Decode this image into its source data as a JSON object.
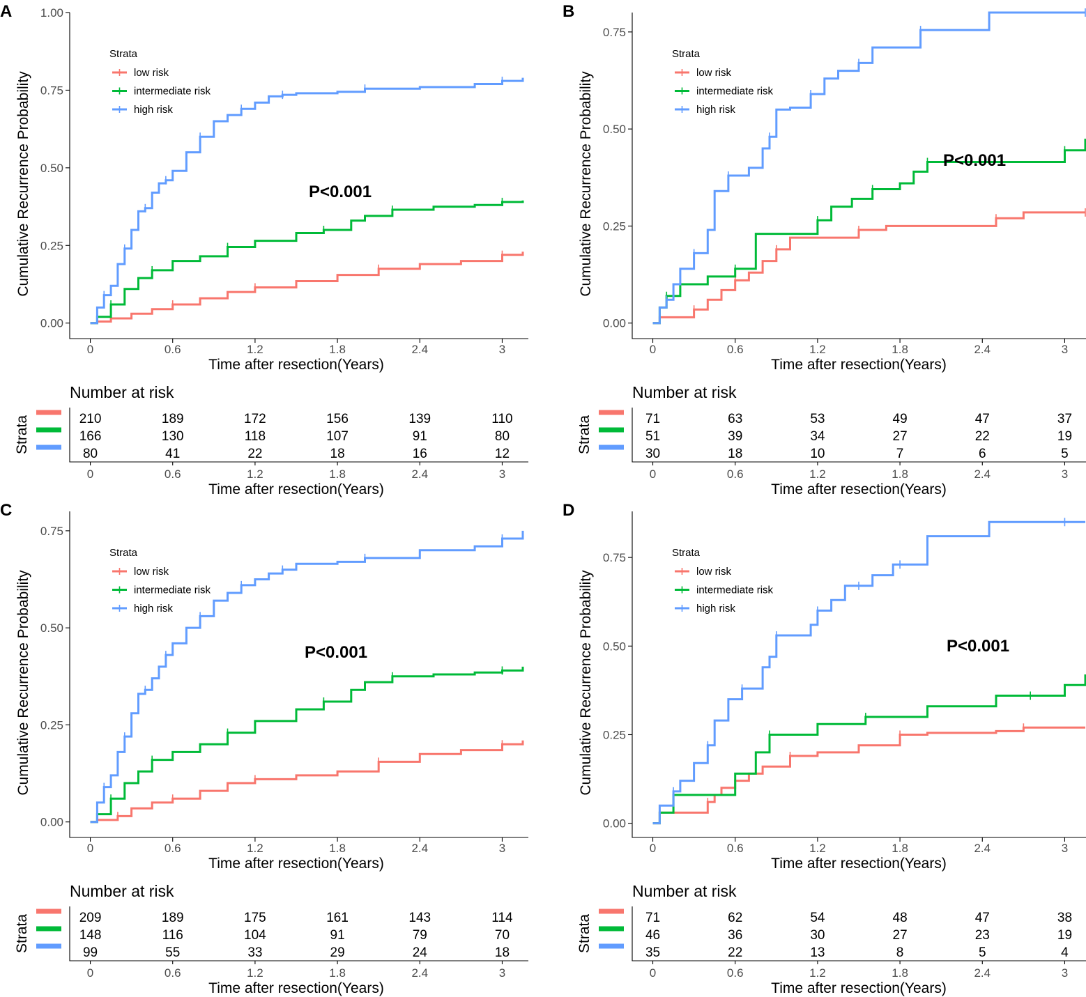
{
  "chart_data": [
    {
      "panel": "A",
      "type": "line",
      "ylabel": "Cumulative Recurrence Probability",
      "xlabel": "Time after resection(Years)",
      "xlim": [
        -0.15,
        3.15
      ],
      "ylim": [
        -0.05,
        1.0
      ],
      "xticks": [
        "0",
        "0.6",
        "1.2",
        "1.8",
        "2.4",
        "3"
      ],
      "xtick_values": [
        0,
        0.6,
        1.2,
        1.8,
        2.4,
        3
      ],
      "yticks": [
        "0.00",
        "0.25",
        "0.50",
        "0.75",
        "1.00"
      ],
      "ytick_values": [
        0,
        0.25,
        0.5,
        0.75,
        1.0
      ],
      "p_value": "P<0.001",
      "legend_title": "Strata",
      "series": [
        {
          "name": "low risk",
          "color": "#F8766D",
          "x": [
            0,
            0.05,
            0.15,
            0.3,
            0.45,
            0.6,
            0.8,
            1.0,
            1.2,
            1.5,
            1.8,
            2.1,
            2.4,
            2.7,
            3.0,
            3.15
          ],
          "y": [
            0,
            0.005,
            0.015,
            0.03,
            0.045,
            0.06,
            0.08,
            0.1,
            0.115,
            0.135,
            0.155,
            0.175,
            0.19,
            0.2,
            0.22,
            0.23
          ]
        },
        {
          "name": "intermediate risk",
          "color": "#00BA38",
          "x": [
            0,
            0.05,
            0.15,
            0.25,
            0.35,
            0.45,
            0.6,
            0.8,
            1.0,
            1.2,
            1.5,
            1.7,
            1.9,
            2.0,
            2.2,
            2.5,
            2.8,
            3.0,
            3.15
          ],
          "y": [
            0,
            0.02,
            0.06,
            0.11,
            0.145,
            0.17,
            0.2,
            0.215,
            0.245,
            0.265,
            0.29,
            0.3,
            0.33,
            0.345,
            0.365,
            0.375,
            0.38,
            0.39,
            0.395
          ]
        },
        {
          "name": "high risk",
          "color": "#619CFF",
          "x": [
            0,
            0.05,
            0.1,
            0.15,
            0.2,
            0.25,
            0.3,
            0.35,
            0.4,
            0.45,
            0.5,
            0.55,
            0.6,
            0.7,
            0.8,
            0.9,
            1.0,
            1.1,
            1.2,
            1.3,
            1.4,
            1.5,
            1.8,
            2.0,
            2.4,
            2.8,
            3.0,
            3.15
          ],
          "y": [
            0,
            0.05,
            0.09,
            0.12,
            0.19,
            0.24,
            0.3,
            0.36,
            0.37,
            0.42,
            0.45,
            0.46,
            0.49,
            0.55,
            0.6,
            0.65,
            0.67,
            0.69,
            0.71,
            0.73,
            0.735,
            0.74,
            0.745,
            0.755,
            0.76,
            0.77,
            0.78,
            0.79
          ]
        }
      ],
      "risk_table": {
        "title": "Number at risk",
        "ylabel": "Strata",
        "xlabel": "Time after resection(Years)",
        "rows": [
          [
            "210",
            "189",
            "172",
            "156",
            "139",
            "110"
          ],
          [
            "166",
            "130",
            "118",
            "107",
            "91",
            "80"
          ],
          [
            "80",
            "41",
            "22",
            "18",
            "16",
            "12"
          ]
        ]
      }
    },
    {
      "panel": "B",
      "type": "line",
      "ylabel": "Cumulative Recurrence Probability",
      "xlabel": "Time after resection(Years)",
      "xlim": [
        -0.15,
        3.15
      ],
      "ylim": [
        -0.04,
        0.8
      ],
      "xticks": [
        "0",
        "0.6",
        "1.2",
        "1.8",
        "2.4",
        "3"
      ],
      "xtick_values": [
        0,
        0.6,
        1.2,
        1.8,
        2.4,
        3
      ],
      "yticks": [
        "0.00",
        "0.25",
        "0.50",
        "0.75"
      ],
      "ytick_values": [
        0,
        0.25,
        0.5,
        0.75
      ],
      "p_value": "P<0.001",
      "legend_title": "Strata",
      "series": [
        {
          "name": "low risk",
          "color": "#F8766D",
          "x": [
            0,
            0.05,
            0.3,
            0.4,
            0.5,
            0.6,
            0.7,
            0.8,
            0.9,
            1.0,
            1.2,
            1.5,
            1.7,
            2.0,
            2.5,
            2.7,
            3.0,
            3.15
          ],
          "y": [
            0,
            0.015,
            0.035,
            0.06,
            0.085,
            0.11,
            0.13,
            0.16,
            0.19,
            0.22,
            0.22,
            0.24,
            0.25,
            0.25,
            0.27,
            0.285,
            0.285,
            0.285
          ]
        },
        {
          "name": "intermediate risk",
          "color": "#00BA38",
          "x": [
            0,
            0.05,
            0.1,
            0.2,
            0.4,
            0.6,
            0.75,
            1.0,
            1.2,
            1.3,
            1.45,
            1.6,
            1.8,
            1.9,
            2.0,
            2.5,
            2.8,
            3.0,
            3.15
          ],
          "y": [
            0,
            0.04,
            0.07,
            0.1,
            0.12,
            0.14,
            0.23,
            0.23,
            0.265,
            0.3,
            0.32,
            0.345,
            0.36,
            0.39,
            0.415,
            0.415,
            0.415,
            0.445,
            0.475
          ]
        },
        {
          "name": "high risk",
          "color": "#619CFF",
          "x": [
            0,
            0.05,
            0.1,
            0.15,
            0.2,
            0.3,
            0.4,
            0.45,
            0.55,
            0.7,
            0.8,
            0.85,
            0.9,
            1.0,
            1.15,
            1.25,
            1.35,
            1.5,
            1.6,
            1.8,
            1.95,
            2.45,
            3.0,
            3.15
          ],
          "y": [
            0,
            0.04,
            0.06,
            0.1,
            0.14,
            0.18,
            0.24,
            0.34,
            0.38,
            0.4,
            0.45,
            0.48,
            0.55,
            0.555,
            0.59,
            0.63,
            0.65,
            0.67,
            0.71,
            0.71,
            0.755,
            0.8,
            0.8,
            0.8
          ]
        }
      ],
      "risk_table": {
        "title": "Number at risk",
        "ylabel": "Strata",
        "xlabel": "Time after resection(Years)",
        "rows": [
          [
            "71",
            "63",
            "53",
            "49",
            "47",
            "37"
          ],
          [
            "51",
            "39",
            "34",
            "27",
            "22",
            "19"
          ],
          [
            "30",
            "18",
            "10",
            "7",
            "6",
            "5"
          ]
        ]
      }
    },
    {
      "panel": "C",
      "type": "line",
      "ylabel": "Cumulative Recurrence Probability",
      "xlabel": "Time after resection(Years)",
      "xlim": [
        -0.15,
        3.15
      ],
      "ylim": [
        -0.04,
        0.8
      ],
      "xticks": [
        "0",
        "0.6",
        "1.2",
        "1.8",
        "2.4",
        "3"
      ],
      "xtick_values": [
        0,
        0.6,
        1.2,
        1.8,
        2.4,
        3
      ],
      "yticks": [
        "0.00",
        "0.25",
        "0.50",
        "0.75"
      ],
      "ytick_values": [
        0,
        0.25,
        0.5,
        0.75
      ],
      "p_value": "P<0.001",
      "legend_title": "Strata",
      "series": [
        {
          "name": "low risk",
          "color": "#F8766D",
          "x": [
            0,
            0.05,
            0.2,
            0.3,
            0.45,
            0.6,
            0.8,
            1.0,
            1.2,
            1.5,
            1.8,
            2.1,
            2.4,
            2.7,
            3.0,
            3.15
          ],
          "y": [
            0,
            0.005,
            0.015,
            0.035,
            0.05,
            0.06,
            0.08,
            0.1,
            0.11,
            0.12,
            0.13,
            0.155,
            0.175,
            0.185,
            0.2,
            0.21
          ]
        },
        {
          "name": "intermediate risk",
          "color": "#00BA38",
          "x": [
            0,
            0.05,
            0.15,
            0.25,
            0.35,
            0.45,
            0.6,
            0.8,
            1.0,
            1.2,
            1.5,
            1.7,
            1.9,
            2.0,
            2.2,
            2.5,
            2.8,
            3.0,
            3.15
          ],
          "y": [
            0,
            0.02,
            0.06,
            0.1,
            0.13,
            0.16,
            0.18,
            0.2,
            0.23,
            0.26,
            0.29,
            0.31,
            0.34,
            0.36,
            0.375,
            0.38,
            0.385,
            0.39,
            0.4
          ]
        },
        {
          "name": "high risk",
          "color": "#619CFF",
          "x": [
            0,
            0.05,
            0.1,
            0.15,
            0.2,
            0.25,
            0.3,
            0.35,
            0.4,
            0.45,
            0.5,
            0.55,
            0.6,
            0.7,
            0.8,
            0.9,
            1.0,
            1.1,
            1.2,
            1.3,
            1.4,
            1.5,
            1.8,
            2.0,
            2.4,
            2.8,
            3.0,
            3.15
          ],
          "y": [
            0,
            0.05,
            0.09,
            0.12,
            0.18,
            0.22,
            0.28,
            0.33,
            0.34,
            0.37,
            0.4,
            0.43,
            0.46,
            0.5,
            0.53,
            0.57,
            0.59,
            0.61,
            0.625,
            0.64,
            0.65,
            0.665,
            0.67,
            0.68,
            0.7,
            0.71,
            0.73,
            0.75
          ]
        }
      ],
      "risk_table": {
        "title": "Number at risk",
        "ylabel": "Strata",
        "xlabel": "Time after resection(Years)",
        "rows": [
          [
            "209",
            "189",
            "175",
            "161",
            "143",
            "114"
          ],
          [
            "148",
            "116",
            "104",
            "91",
            "79",
            "70"
          ],
          [
            "99",
            "55",
            "33",
            "29",
            "24",
            "18"
          ]
        ]
      }
    },
    {
      "panel": "D",
      "type": "line",
      "ylabel": "Cumulative Recurrence Probability",
      "xlabel": "Time after resection(Years)",
      "xlim": [
        -0.15,
        3.15
      ],
      "ylim": [
        -0.04,
        0.88
      ],
      "xticks": [
        "0",
        "0.6",
        "1.2",
        "1.8",
        "2.4",
        "3"
      ],
      "xtick_values": [
        0,
        0.6,
        1.2,
        1.8,
        2.4,
        3
      ],
      "yticks": [
        "0.00",
        "0.25",
        "0.50",
        "0.75"
      ],
      "ytick_values": [
        0,
        0.25,
        0.5,
        0.75
      ],
      "p_value": "P<0.001",
      "legend_title": "Strata",
      "series": [
        {
          "name": "low risk",
          "color": "#F8766D",
          "x": [
            0,
            0.05,
            0.4,
            0.45,
            0.5,
            0.6,
            0.7,
            0.8,
            1.0,
            1.2,
            1.5,
            1.8,
            2.0,
            2.5,
            2.7,
            3.0,
            3.15
          ],
          "y": [
            0,
            0.03,
            0.06,
            0.08,
            0.1,
            0.12,
            0.14,
            0.16,
            0.19,
            0.2,
            0.22,
            0.25,
            0.255,
            0.26,
            0.27,
            0.27,
            0.27
          ]
        },
        {
          "name": "intermediate risk",
          "color": "#00BA38",
          "x": [
            0,
            0.05,
            0.15,
            0.6,
            0.75,
            0.85,
            1.0,
            1.2,
            1.55,
            2.0,
            2.5,
            2.75,
            3.0,
            3.15
          ],
          "y": [
            0,
            0.03,
            0.08,
            0.14,
            0.2,
            0.25,
            0.25,
            0.28,
            0.3,
            0.33,
            0.36,
            0.36,
            0.39,
            0.42
          ]
        },
        {
          "name": "high risk",
          "color": "#619CFF",
          "x": [
            0,
            0.05,
            0.15,
            0.2,
            0.3,
            0.4,
            0.45,
            0.55,
            0.65,
            0.8,
            0.85,
            0.9,
            1.0,
            1.15,
            1.2,
            1.3,
            1.4,
            1.5,
            1.6,
            1.75,
            1.8,
            2.0,
            2.45,
            3.0,
            3.15
          ],
          "y": [
            0,
            0.05,
            0.09,
            0.12,
            0.17,
            0.22,
            0.29,
            0.35,
            0.38,
            0.44,
            0.47,
            0.53,
            0.53,
            0.56,
            0.6,
            0.63,
            0.67,
            0.67,
            0.7,
            0.73,
            0.73,
            0.81,
            0.85,
            0.85,
            0.85
          ]
        }
      ],
      "risk_table": {
        "title": "Number at risk",
        "ylabel": "Strata",
        "xlabel": "Time after resection(Years)",
        "rows": [
          [
            "71",
            "62",
            "54",
            "48",
            "47",
            "38"
          ],
          [
            "46",
            "36",
            "30",
            "27",
            "23",
            "19"
          ],
          [
            "35",
            "22",
            "13",
            "8",
            "5",
            "4"
          ]
        ]
      }
    }
  ]
}
